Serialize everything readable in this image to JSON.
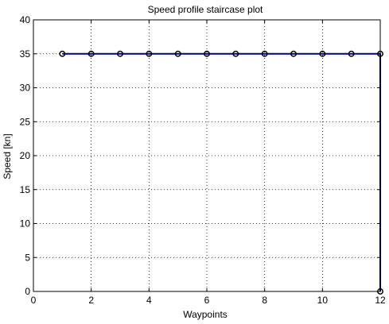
{
  "chart_data": {
    "type": "line",
    "title": "Speed profile staircase plot",
    "xlabel": "Waypoints",
    "ylabel": "Speed [kn]",
    "xlim": [
      0,
      12
    ],
    "ylim": [
      0,
      40
    ],
    "xticks": [
      0,
      2,
      4,
      6,
      8,
      10,
      12
    ],
    "yticks": [
      0,
      5,
      10,
      15,
      20,
      25,
      30,
      35,
      40
    ],
    "grid": true,
    "series": [
      {
        "style": "staircase",
        "color": "#00007f",
        "x": [
          1,
          12,
          12
        ],
        "y": [
          35,
          35,
          0
        ]
      },
      {
        "style": "circle-markers",
        "color": "#000000",
        "x": [
          1,
          2,
          3,
          4,
          5,
          6,
          7,
          8,
          9,
          10,
          11,
          12,
          12
        ],
        "y": [
          35,
          35,
          35,
          35,
          35,
          35,
          35,
          35,
          35,
          35,
          35,
          35,
          0
        ]
      }
    ]
  }
}
